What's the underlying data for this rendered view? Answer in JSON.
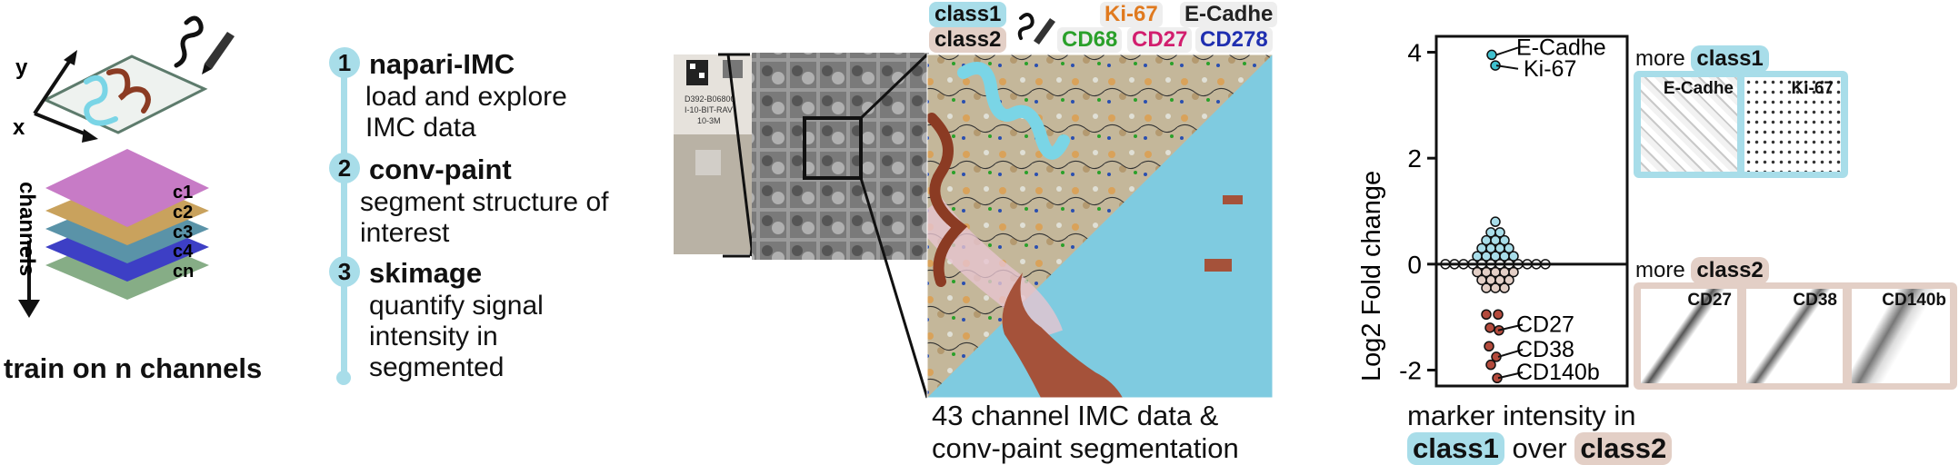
{
  "panel_train": {
    "axis_y": "y",
    "axis_x": "x",
    "channels_label": "channels",
    "channel_names": [
      "c1",
      "c2",
      "c3",
      "c4",
      "cn"
    ],
    "caption": "train on n channels",
    "layer_colors": [
      "#c77bc6",
      "#c9a25d",
      "#5a93a8",
      "#3d3fc5",
      "#86ad86"
    ]
  },
  "pipeline": {
    "steps": [
      {
        "num": "1",
        "title": "napari-IMC",
        "desc": "load and explore IMC data"
      },
      {
        "num": "2",
        "title": "conv-paint",
        "desc": "segment structure of interest"
      },
      {
        "num": "3",
        "title": "skimage",
        "desc": "quantify signal intensity in segmented"
      }
    ],
    "line_color": "#a8dde9"
  },
  "imc": {
    "legend_class1": "class1",
    "legend_class2": "class2",
    "markers": [
      {
        "label": "Ki-67",
        "color": "#e07a1f"
      },
      {
        "label": "E-Cadhe",
        "color": "#222222"
      },
      {
        "label": "CD68",
        "color": "#2aa02a"
      },
      {
        "label": "CD27",
        "color": "#d21e6e"
      },
      {
        "label": "CD278",
        "color": "#1f2fb0"
      }
    ],
    "slide_text": [
      "D392-B06800",
      "I-10-BIT-RAV",
      "10-3M"
    ],
    "caption_line1": "43 channel IMC data &",
    "caption_line2": "conv-paint segmentation",
    "class1_color": "#a8dde9",
    "class2_color": "#e3cfc6",
    "seg_class2_color": "#a5523a"
  },
  "chart_data": {
    "type": "scatter",
    "title": "",
    "xlabel": "",
    "ylabel": "Log2 Fold change",
    "ylim": [
      -2.3,
      4.3
    ],
    "yticks": [
      4,
      2,
      0,
      -2
    ],
    "annotations": [
      {
        "label": "E-Cadhe",
        "y": 3.95
      },
      {
        "label": "Ki-67",
        "y": 3.75
      },
      {
        "label": "CD27",
        "y": -1.25
      },
      {
        "label": "CD38",
        "y": -1.75
      },
      {
        "label": "CD140b",
        "y": -2.15
      }
    ],
    "points_up": [
      3.95,
      3.75
    ],
    "points_down": [
      -0.95,
      -0.95,
      -1.2,
      -1.25,
      -1.55,
      -1.75,
      -1.9,
      -2.15
    ],
    "points_center": [
      0.8,
      0.6,
      0.6,
      0.45,
      0.45,
      0.45,
      0.3,
      0.3,
      0.3,
      0.3,
      0.15,
      0.15,
      0.15,
      0.15,
      0.15,
      0,
      0,
      0,
      0,
      0,
      0,
      0,
      0,
      0,
      0,
      0,
      0,
      -0.15,
      -0.15,
      -0.15,
      -0.15,
      -0.15,
      -0.3,
      -0.3,
      -0.3,
      -0.3,
      -0.45,
      -0.45,
      -0.45
    ],
    "caption_line1": "marker intensity in",
    "caption_class1": "class1",
    "caption_over": "over",
    "caption_class2": "class2"
  },
  "thumbs": {
    "class1_header_more": "more",
    "class1_header_chip": "class1",
    "class1_images": [
      "E-Cadhe",
      "Ki-67"
    ],
    "class2_header_more": "more",
    "class2_header_chip": "class2",
    "class2_images": [
      "CD27",
      "CD38",
      "CD140b"
    ]
  }
}
